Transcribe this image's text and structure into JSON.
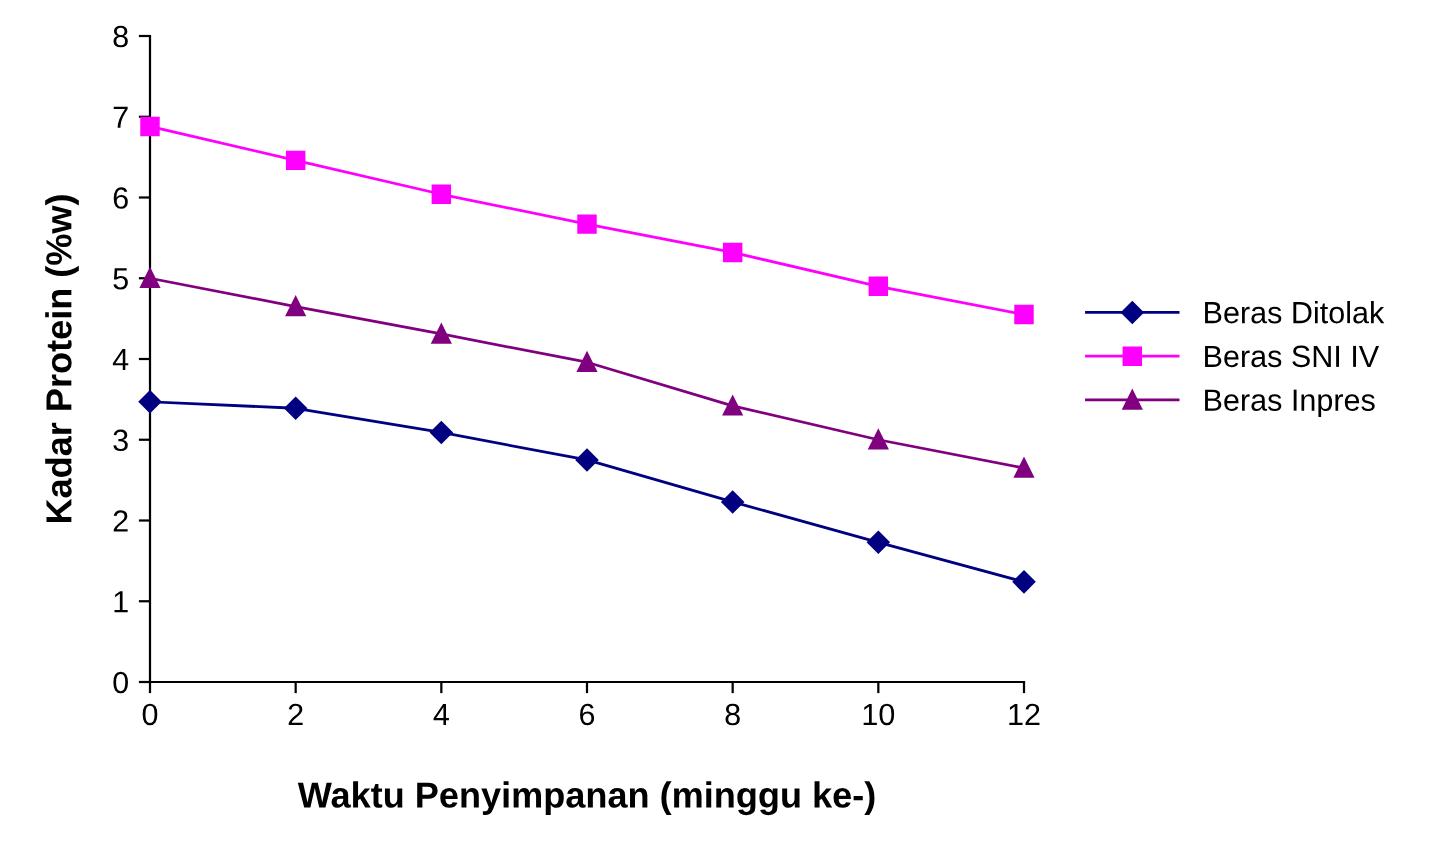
{
  "chart_data": {
    "type": "line",
    "xlabel": "Waktu Penyimpanan (minggu ke-)",
    "ylabel": "Kadar Protein (%w)",
    "x": [
      0,
      2,
      4,
      6,
      8,
      10,
      12
    ],
    "series": [
      {
        "name": "Beras Ditolak",
        "color": "#000080",
        "marker": "diamond",
        "values": [
          3.47,
          3.39,
          3.09,
          2.75,
          2.23,
          1.73,
          1.24
        ]
      },
      {
        "name": "Beras SNI IV",
        "color": "#ff00ff",
        "marker": "square",
        "values": [
          6.88,
          6.46,
          6.04,
          5.67,
          5.32,
          4.9,
          4.55
        ]
      },
      {
        "name": "Beras Inpres",
        "color": "#800080",
        "marker": "triangle",
        "values": [
          5.0,
          4.65,
          4.31,
          3.96,
          3.42,
          3.0,
          2.65
        ]
      }
    ],
    "xlim": [
      0,
      12
    ],
    "xticks": [
      0,
      2,
      4,
      6,
      8,
      10,
      12
    ],
    "ylim": [
      0,
      8
    ],
    "yticks": [
      0,
      1,
      2,
      3,
      4,
      5,
      6,
      7,
      8
    ],
    "grid": false,
    "legend": "right",
    "line_style": "solid"
  }
}
